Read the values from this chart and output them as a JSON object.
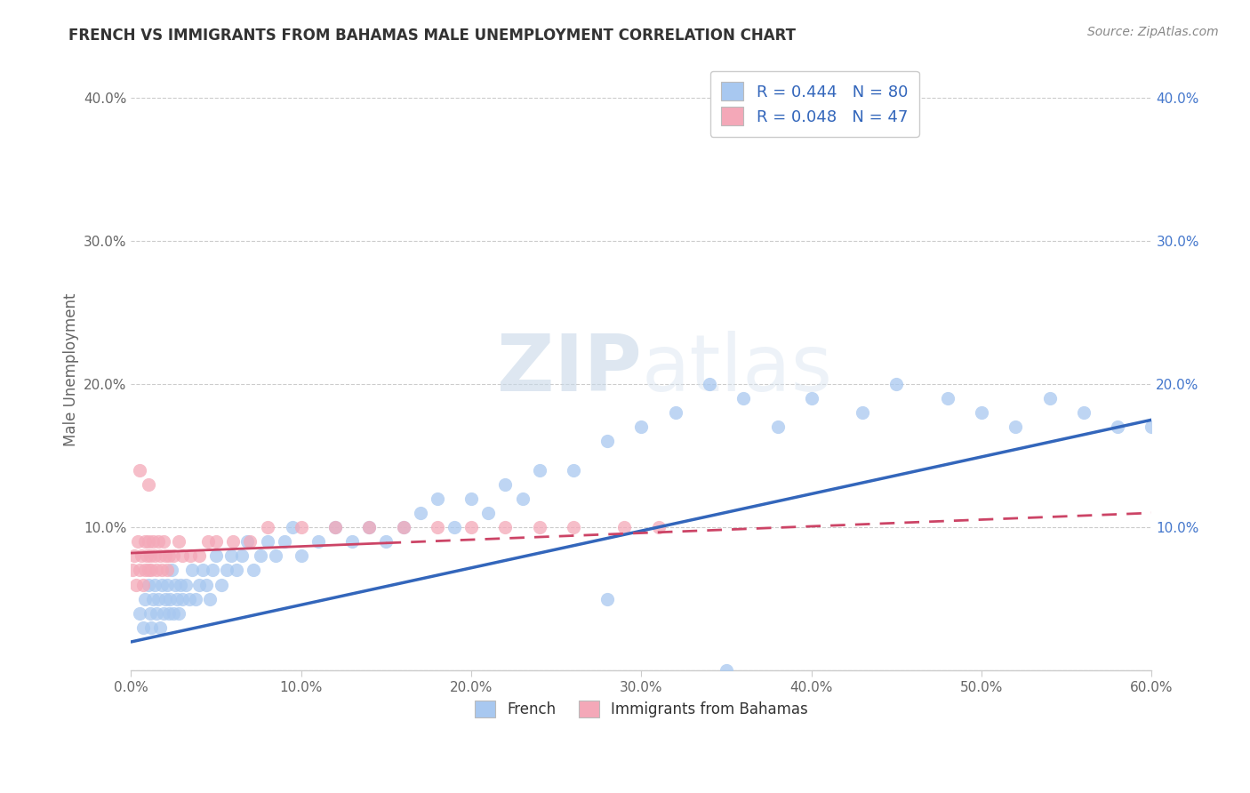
{
  "title": "FRENCH VS IMMIGRANTS FROM BAHAMAS MALE UNEMPLOYMENT CORRELATION CHART",
  "source": "Source: ZipAtlas.com",
  "ylabel": "Male Unemployment",
  "xlim": [
    0.0,
    0.6
  ],
  "ylim": [
    0.0,
    0.42
  ],
  "xticks": [
    0.0,
    0.1,
    0.2,
    0.3,
    0.4,
    0.5,
    0.6
  ],
  "yticks": [
    0.0,
    0.1,
    0.2,
    0.3,
    0.4
  ],
  "xticklabels": [
    "0.0%",
    "10.0%",
    "20.0%",
    "30.0%",
    "40.0%",
    "50.0%",
    "60.0%"
  ],
  "yticklabels": [
    "",
    "10.0%",
    "20.0%",
    "30.0%",
    "40.0%"
  ],
  "french_R": 0.444,
  "french_N": 80,
  "bahamas_R": 0.048,
  "bahamas_N": 47,
  "french_color": "#a8c8f0",
  "bahamas_color": "#f4a8b8",
  "french_line_color": "#3366bb",
  "bahamas_line_color": "#cc4466",
  "legend_label_french": "French",
  "legend_label_bahamas": "Immigrants from Bahamas",
  "watermark": "ZIPatlas",
  "title_color": "#333333",
  "grid_color": "#cccccc",
  "stats_color": "#3366bb",
  "french_x": [
    0.005,
    0.007,
    0.008,
    0.01,
    0.011,
    0.012,
    0.013,
    0.014,
    0.015,
    0.016,
    0.017,
    0.018,
    0.019,
    0.02,
    0.021,
    0.022,
    0.023,
    0.024,
    0.025,
    0.026,
    0.027,
    0.028,
    0.029,
    0.03,
    0.032,
    0.034,
    0.036,
    0.038,
    0.04,
    0.042,
    0.044,
    0.046,
    0.048,
    0.05,
    0.053,
    0.056,
    0.059,
    0.062,
    0.065,
    0.068,
    0.072,
    0.076,
    0.08,
    0.085,
    0.09,
    0.095,
    0.1,
    0.11,
    0.12,
    0.13,
    0.14,
    0.15,
    0.16,
    0.17,
    0.18,
    0.19,
    0.2,
    0.21,
    0.22,
    0.23,
    0.24,
    0.26,
    0.28,
    0.3,
    0.32,
    0.34,
    0.36,
    0.38,
    0.4,
    0.43,
    0.45,
    0.48,
    0.5,
    0.52,
    0.54,
    0.56,
    0.58,
    0.6,
    0.35,
    0.28
  ],
  "french_y": [
    0.04,
    0.03,
    0.05,
    0.06,
    0.04,
    0.03,
    0.05,
    0.06,
    0.04,
    0.05,
    0.03,
    0.06,
    0.04,
    0.05,
    0.06,
    0.04,
    0.05,
    0.07,
    0.04,
    0.06,
    0.05,
    0.04,
    0.06,
    0.05,
    0.06,
    0.05,
    0.07,
    0.05,
    0.06,
    0.07,
    0.06,
    0.05,
    0.07,
    0.08,
    0.06,
    0.07,
    0.08,
    0.07,
    0.08,
    0.09,
    0.07,
    0.08,
    0.09,
    0.08,
    0.09,
    0.1,
    0.08,
    0.09,
    0.1,
    0.09,
    0.1,
    0.09,
    0.1,
    0.11,
    0.12,
    0.1,
    0.12,
    0.11,
    0.13,
    0.12,
    0.14,
    0.14,
    0.16,
    0.17,
    0.18,
    0.2,
    0.19,
    0.17,
    0.19,
    0.18,
    0.2,
    0.19,
    0.18,
    0.17,
    0.19,
    0.18,
    0.17,
    0.17,
    0.0,
    0.05
  ],
  "bahamas_x": [
    0.001,
    0.002,
    0.003,
    0.004,
    0.005,
    0.006,
    0.007,
    0.008,
    0.008,
    0.009,
    0.01,
    0.01,
    0.011,
    0.012,
    0.013,
    0.014,
    0.015,
    0.016,
    0.017,
    0.018,
    0.019,
    0.02,
    0.021,
    0.022,
    0.025,
    0.028,
    0.03,
    0.035,
    0.04,
    0.045,
    0.05,
    0.06,
    0.07,
    0.08,
    0.1,
    0.12,
    0.14,
    0.16,
    0.18,
    0.2,
    0.22,
    0.24,
    0.26,
    0.29,
    0.31,
    0.01,
    0.005
  ],
  "bahamas_y": [
    0.07,
    0.08,
    0.06,
    0.09,
    0.07,
    0.08,
    0.06,
    0.07,
    0.09,
    0.08,
    0.07,
    0.09,
    0.08,
    0.07,
    0.09,
    0.08,
    0.07,
    0.09,
    0.08,
    0.07,
    0.09,
    0.08,
    0.07,
    0.08,
    0.08,
    0.09,
    0.08,
    0.08,
    0.08,
    0.09,
    0.09,
    0.09,
    0.09,
    0.1,
    0.1,
    0.1,
    0.1,
    0.1,
    0.1,
    0.1,
    0.1,
    0.1,
    0.1,
    0.1,
    0.1,
    0.13,
    0.14
  ],
  "french_line_y0": 0.02,
  "french_line_y1": 0.175,
  "bahamas_line_y0": 0.082,
  "bahamas_line_y1": 0.11
}
